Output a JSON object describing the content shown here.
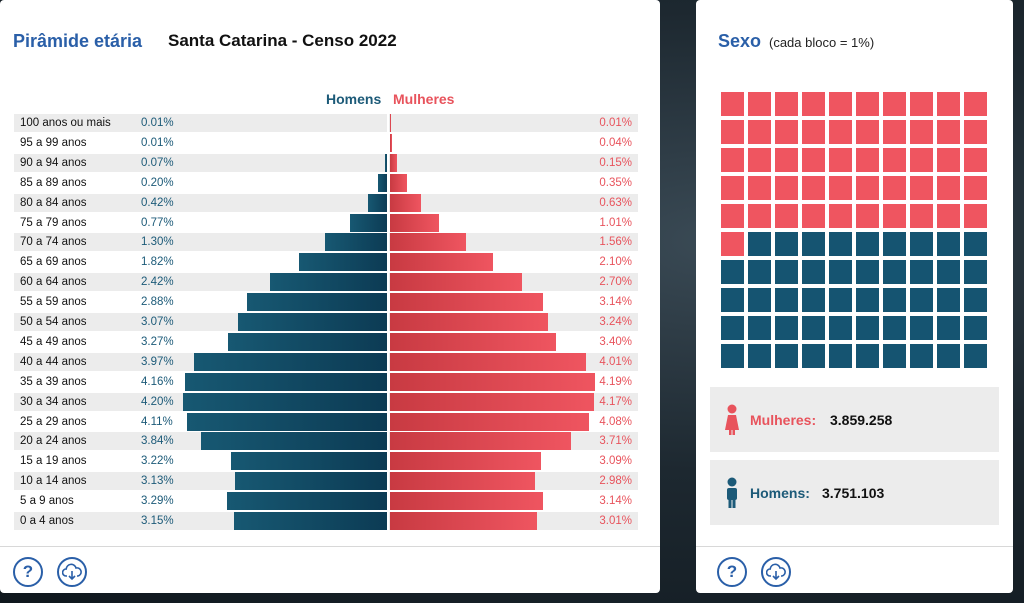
{
  "pyramid": {
    "title": "Pirâmide etária",
    "subtitle": "Santa Catarina - Censo 2022",
    "help_label": "?",
    "colors": {
      "men": "#0c3b54",
      "women": "#ef5560"
    }
  },
  "sex": {
    "title": "Sexo",
    "subtitle": "(cada bloco = 1%)",
    "women_label": "Mulheres:",
    "women_value": "3.859.258",
    "men_label": "Homens:",
    "men_value": "3.751.103",
    "help_label": "?",
    "women_blocks": 51,
    "men_blocks": 49
  },
  "chart_data": {
    "type": "bar",
    "title": "",
    "legend": [
      "Homens",
      "Mulheres"
    ],
    "categories": [
      "100 anos ou mais",
      "95 a 99 anos",
      "90 a 94 anos",
      "85 a 89 anos",
      "80 a 84 anos",
      "75 a 79 anos",
      "70 a 74 anos",
      "65 a 69 anos",
      "60 a 64 anos",
      "55 a 59 anos",
      "50 a 54 anos",
      "45 a 49 anos",
      "40 a 44 anos",
      "35 a 39 anos",
      "30 a 34 anos",
      "25 a 29 anos",
      "20 a 24 anos",
      "15 a 19 anos",
      "10 a 14 anos",
      "5 a 9 anos",
      "0 a 4 anos"
    ],
    "series": [
      {
        "name": "Homens",
        "values": [
          0.01,
          0.01,
          0.07,
          0.2,
          0.42,
          0.77,
          1.3,
          1.82,
          2.42,
          2.88,
          3.07,
          3.27,
          3.97,
          4.16,
          4.2,
          4.11,
          3.84,
          3.22,
          3.13,
          3.29,
          3.15
        ],
        "labels": [
          "0.01%",
          "0.01%",
          "0.07%",
          "0.20%",
          "0.42%",
          "0.77%",
          "1.30%",
          "1.82%",
          "2.42%",
          "2.88%",
          "3.07%",
          "3.27%",
          "3.97%",
          "4.16%",
          "4.20%",
          "4.11%",
          "3.84%",
          "3.22%",
          "3.13%",
          "3.29%",
          "3.15%"
        ]
      },
      {
        "name": "Mulheres",
        "values": [
          0.01,
          0.04,
          0.15,
          0.35,
          0.63,
          1.01,
          1.56,
          2.1,
          2.7,
          3.14,
          3.24,
          3.4,
          4.01,
          4.19,
          4.17,
          4.08,
          3.71,
          3.09,
          2.98,
          3.14,
          3.01
        ],
        "labels": [
          "0.01%",
          "0.04%",
          "0.15%",
          "0.35%",
          "0.63%",
          "1.01%",
          "1.56%",
          "2.10%",
          "2.70%",
          "3.14%",
          "3.24%",
          "3.40%",
          "4.01%",
          "4.19%",
          "4.17%",
          "4.08%",
          "3.71%",
          "3.09%",
          "2.98%",
          "3.14%",
          "3.01%"
        ]
      }
    ],
    "xlim": [
      0,
      4.2
    ]
  }
}
